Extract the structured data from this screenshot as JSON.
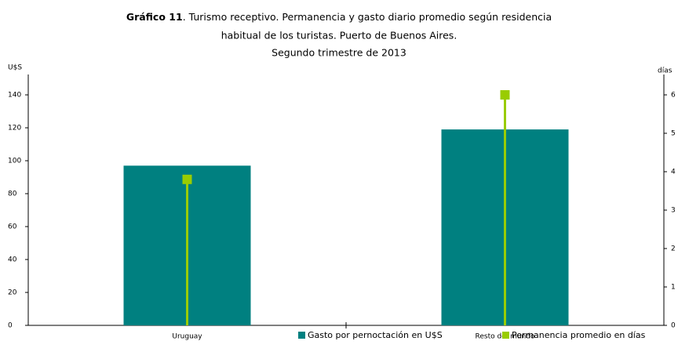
{
  "chart_data": {
    "type": "bar_line",
    "title": [
      "Gráfico 11",
      ". Turismo receptivo. Permanencia y gasto diario promedio según residencia",
      "habitual de los turistas. Puerto de Buenos Aires.",
      "Segundo trimestre de 2013"
    ],
    "y_label": "U$S",
    "y2_label": "días",
    "categories": [
      "Uruguay",
      "Resto del mundo"
    ],
    "series": [
      {
        "name": "Gasto por pernoctación en U$S",
        "color": "#008080",
        "values": [
          97,
          119
        ]
      },
      {
        "name": "Permanencia promedio en días",
        "color": "#99cc00",
        "values": [
          3.8,
          6.0
        ],
        "axis": "y2"
      }
    ],
    "ylim": [
      0,
      140
    ],
    "yticks": [
      0,
      20,
      40,
      60,
      80,
      100,
      120,
      140
    ],
    "y2lim": [
      0,
      6
    ],
    "y2ticks": [
      0,
      1,
      2,
      3,
      4,
      5,
      6
    ]
  }
}
